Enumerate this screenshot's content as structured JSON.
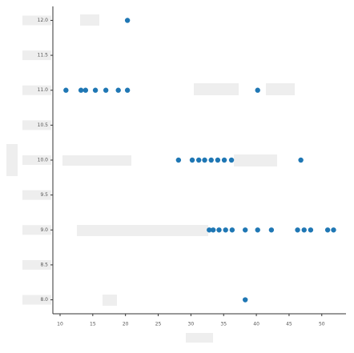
{
  "chart_data": {
    "type": "scatter",
    "color": "#1f77b4",
    "x": [
      20.3,
      10.9,
      13.2,
      13.9,
      15.4,
      17.0,
      18.9,
      20.3,
      40.2,
      28.1,
      30.2,
      31.2,
      32.1,
      33.1,
      34.1,
      35.1,
      36.2,
      46.8,
      32.8,
      33.4,
      34.3,
      35.3,
      36.3,
      38.3,
      40.2,
      42.3,
      46.3,
      47.3,
      48.3,
      50.9,
      51.8,
      38.3
    ],
    "y": [
      12.0,
      11.0,
      11.0,
      11.0,
      11.0,
      11.0,
      11.0,
      11.0,
      11.0,
      10.0,
      10.0,
      10.0,
      10.0,
      10.0,
      10.0,
      10.0,
      10.0,
      10.0,
      9.0,
      9.0,
      9.0,
      9.0,
      9.0,
      9.0,
      9.0,
      9.0,
      9.0,
      9.0,
      9.0,
      9.0,
      9.0,
      8.0
    ],
    "xlim": [
      8.9,
      53.7
    ],
    "ylim": [
      7.8,
      12.2
    ],
    "xticks": [
      10,
      15,
      20,
      25,
      30,
      35,
      40,
      45,
      50
    ],
    "yticks": [
      {
        "value": 8,
        "label": "8.0"
      },
      8.5,
      {
        "value": 9,
        "label": "9.0"
      },
      9.5,
      {
        "value": 10,
        "label": "10.0"
      },
      10.5,
      {
        "value": 11,
        "label": "11.0"
      },
      11.5,
      {
        "value": 12,
        "label": "12.0"
      }
    ]
  }
}
